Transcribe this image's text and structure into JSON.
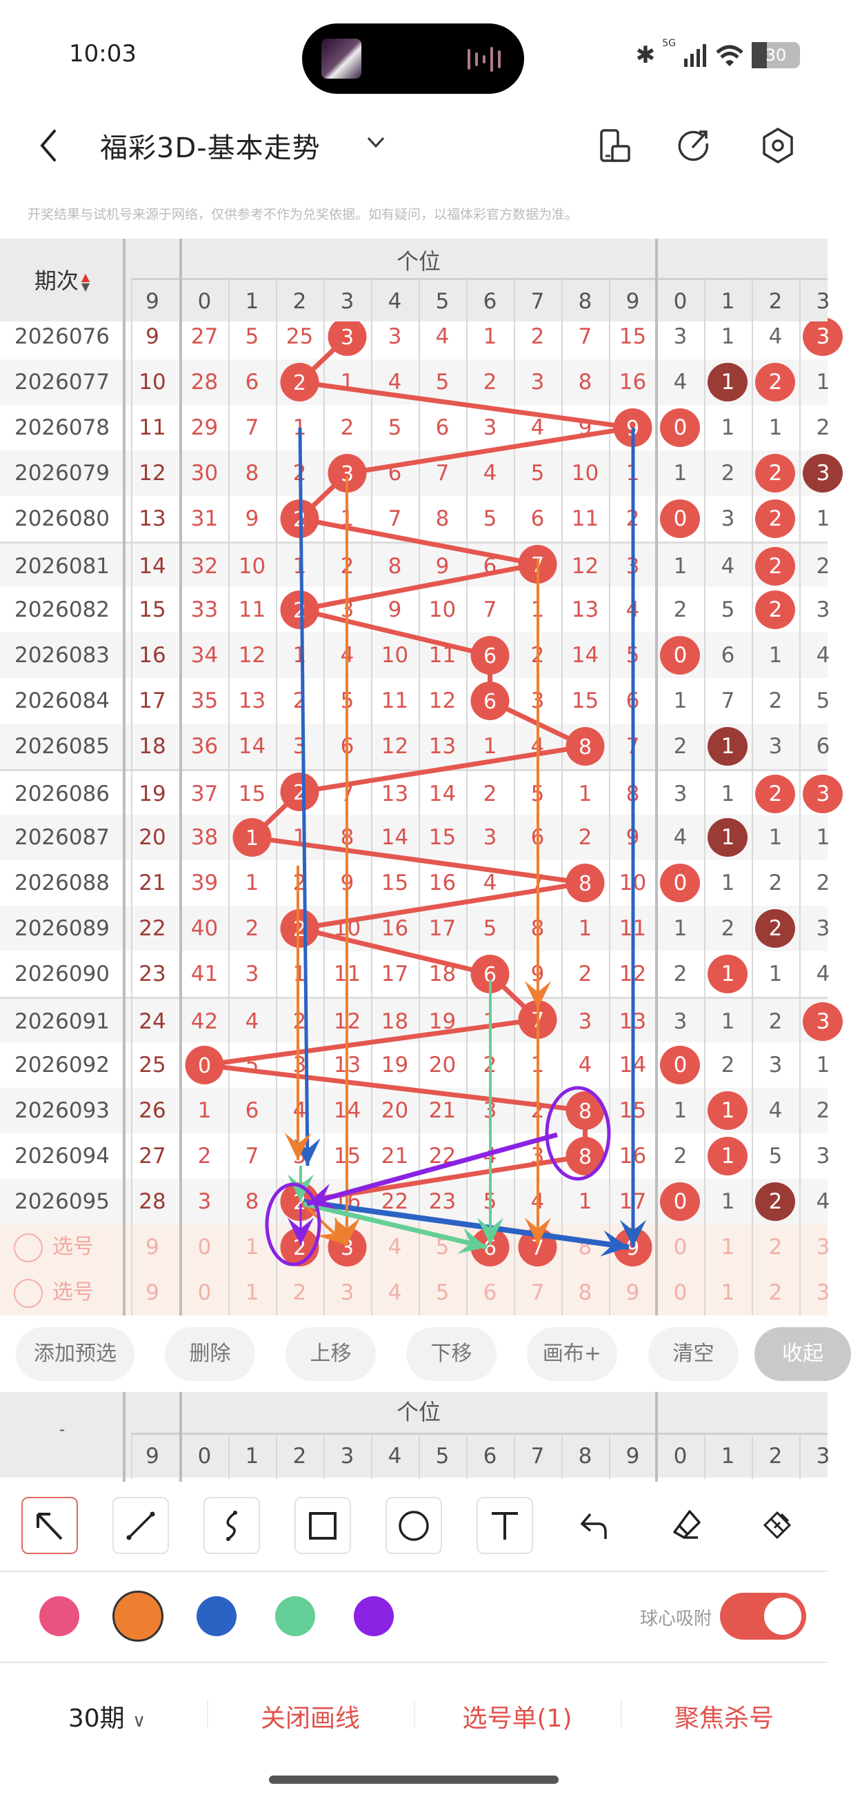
{
  "status": {
    "time": "10:03",
    "network": "5G",
    "battery": "30"
  },
  "header": {
    "title": "福彩3D-基本走势",
    "disclaimer": "开奖结果与试机号来源于网络，仅供参考不作为兑奖依据。如有疑问，以福体彩官方数据为准。"
  },
  "table": {
    "period_header": "期次",
    "group_header": "个位",
    "lead_header": "9",
    "digit_headers": [
      "0",
      "1",
      "2",
      "3",
      "4",
      "5",
      "6",
      "7",
      "8",
      "9"
    ],
    "right_headers": [
      "0",
      "1",
      "2",
      "3"
    ],
    "rows": [
      {
        "period": "2026076",
        "lead": "9",
        "cells": [
          "27",
          "5",
          "25",
          "3",
          "3",
          "4",
          "1",
          "2",
          "7",
          "15"
        ],
        "win": 3,
        "right": [
          "3",
          "1",
          "4",
          "3"
        ],
        "right_marks": [
          "",
          "",
          "",
          "b"
        ]
      },
      {
        "period": "2026077",
        "lead": "10",
        "cells": [
          "28",
          "6",
          "2",
          "1",
          "4",
          "5",
          "2",
          "3",
          "8",
          "16"
        ],
        "win": 2,
        "right": [
          "4",
          "1",
          "2",
          "1"
        ],
        "right_marks": [
          "",
          "d",
          "b",
          ""
        ]
      },
      {
        "period": "2026078",
        "lead": "11",
        "cells": [
          "29",
          "7",
          "1",
          "2",
          "5",
          "6",
          "3",
          "4",
          "9",
          "9"
        ],
        "win": 9,
        "right": [
          "0",
          "1",
          "1",
          "2"
        ],
        "right_marks": [
          "b",
          "",
          "",
          ""
        ]
      },
      {
        "period": "2026079",
        "lead": "12",
        "cells": [
          "30",
          "8",
          "2",
          "3",
          "6",
          "7",
          "4",
          "5",
          "10",
          "1"
        ],
        "win": 3,
        "right": [
          "1",
          "2",
          "2",
          "3"
        ],
        "right_marks": [
          "",
          "",
          "b",
          "d"
        ]
      },
      {
        "period": "2026080",
        "lead": "13",
        "cells": [
          "31",
          "9",
          "2",
          "1",
          "7",
          "8",
          "5",
          "6",
          "11",
          "2"
        ],
        "win": 2,
        "right": [
          "0",
          "3",
          "2",
          "1"
        ],
        "right_marks": [
          "b",
          "",
          "b",
          ""
        ]
      },
      {
        "period": "2026081",
        "lead": "14",
        "cells": [
          "32",
          "10",
          "1",
          "2",
          "8",
          "9",
          "6",
          "7",
          "12",
          "3"
        ],
        "win": 7,
        "right": [
          "1",
          "4",
          "2",
          "2"
        ],
        "right_marks": [
          "",
          "",
          "b",
          ""
        ]
      },
      {
        "period": "2026082",
        "lead": "15",
        "cells": [
          "33",
          "11",
          "2",
          "3",
          "9",
          "10",
          "7",
          "1",
          "13",
          "4"
        ],
        "win": 2,
        "right": [
          "2",
          "5",
          "2",
          "3"
        ],
        "right_marks": [
          "",
          "",
          "b",
          ""
        ]
      },
      {
        "period": "2026083",
        "lead": "16",
        "cells": [
          "34",
          "12",
          "1",
          "4",
          "10",
          "11",
          "6",
          "2",
          "14",
          "5"
        ],
        "win": 6,
        "right": [
          "0",
          "6",
          "1",
          "4"
        ],
        "right_marks": [
          "b",
          "",
          "",
          ""
        ]
      },
      {
        "period": "2026084",
        "lead": "17",
        "cells": [
          "35",
          "13",
          "2",
          "5",
          "11",
          "12",
          "6",
          "3",
          "15",
          "6"
        ],
        "win": 6,
        "right": [
          "1",
          "7",
          "2",
          "5"
        ],
        "right_marks": [
          "",
          "",
          "",
          ""
        ]
      },
      {
        "period": "2026085",
        "lead": "18",
        "cells": [
          "36",
          "14",
          "3",
          "6",
          "12",
          "13",
          "1",
          "4",
          "8",
          "7"
        ],
        "win": 8,
        "right": [
          "2",
          "1",
          "3",
          "6"
        ],
        "right_marks": [
          "",
          "d",
          "",
          ""
        ]
      },
      {
        "period": "2026086",
        "lead": "19",
        "cells": [
          "37",
          "15",
          "2",
          "7",
          "13",
          "14",
          "2",
          "5",
          "1",
          "8"
        ],
        "win": 2,
        "right": [
          "3",
          "1",
          "2",
          "3"
        ],
        "right_marks": [
          "",
          "",
          "b",
          "b"
        ]
      },
      {
        "period": "2026087",
        "lead": "20",
        "cells": [
          "38",
          "1",
          "1",
          "8",
          "14",
          "15",
          "3",
          "6",
          "2",
          "9"
        ],
        "win": 1,
        "right": [
          "4",
          "1",
          "1",
          "1"
        ],
        "right_marks": [
          "",
          "d",
          "",
          ""
        ]
      },
      {
        "period": "2026088",
        "lead": "21",
        "cells": [
          "39",
          "1",
          "2",
          "9",
          "15",
          "16",
          "4",
          "7",
          "8",
          "10"
        ],
        "win": 8,
        "right": [
          "0",
          "1",
          "2",
          "2"
        ],
        "right_marks": [
          "b",
          "",
          "",
          ""
        ]
      },
      {
        "period": "2026089",
        "lead": "22",
        "cells": [
          "40",
          "2",
          "2",
          "10",
          "16",
          "17",
          "5",
          "8",
          "1",
          "11"
        ],
        "win": 2,
        "right": [
          "1",
          "2",
          "2",
          "3"
        ],
        "right_marks": [
          "",
          "",
          "d",
          ""
        ]
      },
      {
        "period": "2026090",
        "lead": "23",
        "cells": [
          "41",
          "3",
          "1",
          "11",
          "17",
          "18",
          "6",
          "9",
          "2",
          "12"
        ],
        "win": 6,
        "right": [
          "2",
          "1",
          "1",
          "4"
        ],
        "right_marks": [
          "",
          "b",
          "",
          ""
        ]
      },
      {
        "period": "2026091",
        "lead": "24",
        "cells": [
          "42",
          "4",
          "2",
          "12",
          "18",
          "19",
          "1",
          "7",
          "3",
          "13"
        ],
        "win": 7,
        "right": [
          "3",
          "1",
          "2",
          "3"
        ],
        "right_marks": [
          "",
          "",
          "",
          "b"
        ]
      },
      {
        "period": "2026092",
        "lead": "25",
        "cells": [
          "0",
          "5",
          "3",
          "13",
          "19",
          "20",
          "2",
          "1",
          "4",
          "14"
        ],
        "win": 0,
        "right": [
          "0",
          "2",
          "3",
          "1"
        ],
        "right_marks": [
          "b",
          "",
          "",
          ""
        ]
      },
      {
        "period": "2026093",
        "lead": "26",
        "cells": [
          "1",
          "6",
          "4",
          "14",
          "20",
          "21",
          "3",
          "2",
          "8",
          "15"
        ],
        "win": 8,
        "right": [
          "1",
          "1",
          "4",
          "2"
        ],
        "right_marks": [
          "",
          "b",
          "",
          ""
        ]
      },
      {
        "period": "2026094",
        "lead": "27",
        "cells": [
          "2",
          "7",
          "5",
          "15",
          "21",
          "22",
          "4",
          "3",
          "8",
          "16"
        ],
        "win": 8,
        "right": [
          "2",
          "1",
          "5",
          "3"
        ],
        "right_marks": [
          "",
          "b",
          "",
          ""
        ]
      },
      {
        "period": "2026095",
        "lead": "28",
        "cells": [
          "3",
          "8",
          "2",
          "16",
          "22",
          "23",
          "5",
          "4",
          "1",
          "17"
        ],
        "win": 2,
        "right": [
          "0",
          "1",
          "2",
          "4"
        ],
        "right_marks": [
          "b",
          "",
          "d",
          ""
        ]
      }
    ],
    "select_rows": [
      {
        "label": "选号",
        "lead": "9",
        "cells": [
          "0",
          "1",
          "2",
          "3",
          "4",
          "5",
          "6",
          "7",
          "8",
          "9"
        ],
        "selected": [
          2,
          3,
          6,
          7,
          9
        ],
        "right": [
          "0",
          "1",
          "2",
          "3"
        ]
      },
      {
        "label": "选号",
        "lead": "9",
        "cells": [
          "0",
          "1",
          "2",
          "3",
          "4",
          "5",
          "6",
          "7",
          "8",
          "9"
        ],
        "selected": [],
        "right": [
          "0",
          "1",
          "2",
          "3"
        ]
      }
    ]
  },
  "actions": [
    "添加预选",
    "删除",
    "上移",
    "下移",
    "画布+",
    "清空",
    "收起"
  ],
  "bottom_header": {
    "period_header": "-",
    "group_header": "个位"
  },
  "tools": [
    "select-arrow",
    "line",
    "curve",
    "rectangle",
    "ellipse",
    "text",
    "undo",
    "eraser",
    "clear-brush"
  ],
  "colors": {
    "palette": [
      "#e9537f",
      "#ee7f31",
      "#2b63c4",
      "#63cf96",
      "#8a22e3"
    ],
    "selected": "#ee7f31",
    "ball": "#e4574f",
    "ball_dark": "#9a3b35"
  },
  "snap": {
    "label": "球心吸附",
    "on": true
  },
  "bottom_nav": {
    "periods": "30期",
    "close_draw": "关闭画线",
    "selection_list": "选号单(1)",
    "focus_kill": "聚焦杀号"
  }
}
